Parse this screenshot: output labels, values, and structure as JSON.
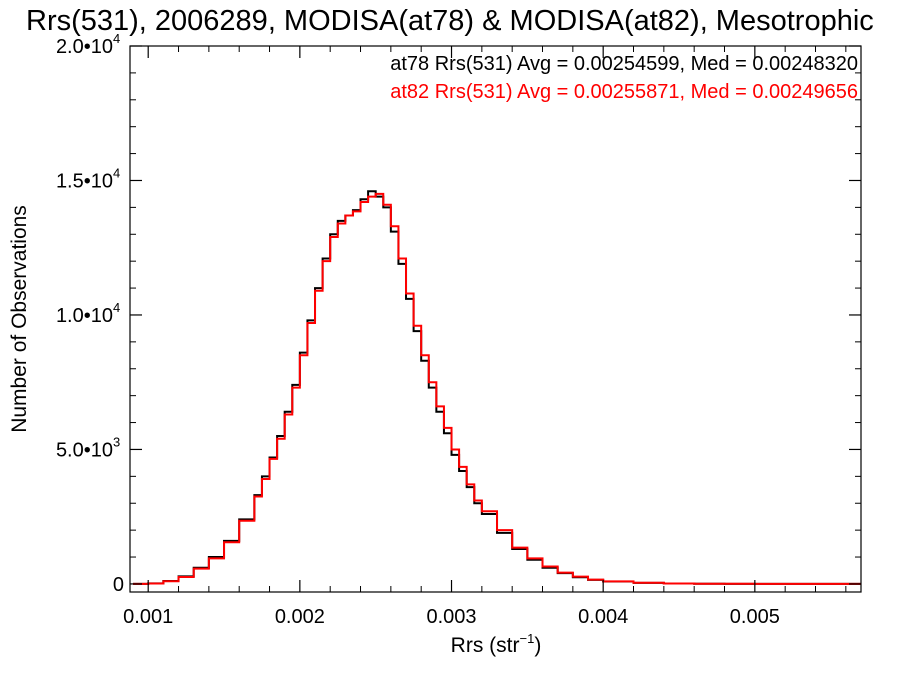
{
  "chart_data": {
    "type": "line",
    "title": "Rrs(531), 2006289, MODISA(at78) & MODISA(at82), Mesotrophic",
    "xlabel_main": "Rrs (str",
    "xlabel_sup": "−1",
    "xlabel_close": ")",
    "ylabel": "Number of Observations",
    "xlim": [
      0.00088,
      0.0057
    ],
    "ylim": [
      -300,
      20000
    ],
    "xticks": [
      {
        "value": 0.001,
        "label": "0.001"
      },
      {
        "value": 0.002,
        "label": "0.002"
      },
      {
        "value": 0.003,
        "label": "0.003"
      },
      {
        "value": 0.004,
        "label": "0.004"
      },
      {
        "value": 0.005,
        "label": "0.005"
      }
    ],
    "yticks": [
      {
        "value": 0,
        "label": "0",
        "sup": ""
      },
      {
        "value": 5000,
        "label": "5.0•10",
        "sup": "3"
      },
      {
        "value": 10000,
        "label": "1.0•10",
        "sup": "4"
      },
      {
        "value": 15000,
        "label": "1.5•10",
        "sup": "4"
      },
      {
        "value": 20000,
        "label": "2.0•10",
        "sup": "4"
      }
    ],
    "grid": false,
    "legend": [
      {
        "text": "at78 Rrs(531) Avg = 0.00254599, Med = 0.00248320",
        "color": "#000000"
      },
      {
        "text": "at82 Rrs(531) Avg = 0.00255871, Med = 0.00249656",
        "color": "#ff0000"
      }
    ],
    "legend_position": "top-right",
    "series": [
      {
        "color": "#000000",
        "style": "step",
        "x": [
          0.0009,
          0.001,
          0.0011,
          0.0012,
          0.0013,
          0.0014,
          0.0015,
          0.0016,
          0.0017,
          0.00175,
          0.0018,
          0.00185,
          0.0019,
          0.00195,
          0.002,
          0.00205,
          0.0021,
          0.00215,
          0.0022,
          0.00225,
          0.0023,
          0.00235,
          0.0024,
          0.00245,
          0.0025,
          0.00255,
          0.0026,
          0.00265,
          0.0027,
          0.00275,
          0.0028,
          0.00285,
          0.0029,
          0.00295,
          0.003,
          0.00305,
          0.0031,
          0.00315,
          0.0032,
          0.0033,
          0.0034,
          0.0035,
          0.0036,
          0.0037,
          0.0038,
          0.0039,
          0.004,
          0.0042,
          0.0044,
          0.0046,
          0.0048,
          0.005,
          0.0052,
          0.0054,
          0.0056,
          0.0057
        ],
        "y": [
          0,
          20,
          110,
          280,
          600,
          1000,
          1600,
          2400,
          3300,
          4000,
          4700,
          5500,
          6400,
          7400,
          8600,
          9800,
          11000,
          12100,
          13000,
          13500,
          13700,
          13900,
          14300,
          14600,
          14400,
          14000,
          13100,
          11900,
          10600,
          9400,
          8300,
          7300,
          6400,
          5600,
          4800,
          4200,
          3600,
          3000,
          2600,
          1900,
          1300,
          900,
          600,
          400,
          250,
          150,
          90,
          40,
          15,
          8,
          4,
          2,
          1,
          0,
          0,
          0
        ]
      },
      {
        "color": "#ff0000",
        "style": "step",
        "x": [
          0.0009,
          0.001,
          0.0011,
          0.0012,
          0.0013,
          0.0014,
          0.0015,
          0.0016,
          0.0017,
          0.00175,
          0.0018,
          0.00185,
          0.0019,
          0.00195,
          0.002,
          0.00205,
          0.0021,
          0.00215,
          0.0022,
          0.00225,
          0.0023,
          0.00235,
          0.0024,
          0.00245,
          0.0025,
          0.00255,
          0.0026,
          0.00265,
          0.0027,
          0.00275,
          0.0028,
          0.00285,
          0.0029,
          0.00295,
          0.003,
          0.00305,
          0.0031,
          0.00315,
          0.0032,
          0.0033,
          0.0034,
          0.0035,
          0.0036,
          0.0037,
          0.0038,
          0.0039,
          0.004,
          0.0042,
          0.0044,
          0.0046,
          0.0048,
          0.005,
          0.0052,
          0.0054,
          0.0056,
          0.0057
        ],
        "y": [
          0,
          15,
          100,
          260,
          570,
          950,
          1550,
          2350,
          3250,
          3900,
          4650,
          5400,
          6300,
          7300,
          8500,
          9700,
          10900,
          12000,
          12900,
          13400,
          13700,
          13850,
          14200,
          14400,
          14500,
          14100,
          13300,
          12100,
          10800,
          9600,
          8500,
          7500,
          6600,
          5800,
          5000,
          4350,
          3700,
          3100,
          2700,
          2000,
          1350,
          950,
          650,
          420,
          270,
          160,
          95,
          45,
          18,
          9,
          5,
          2,
          1,
          0,
          0,
          0
        ]
      }
    ]
  }
}
